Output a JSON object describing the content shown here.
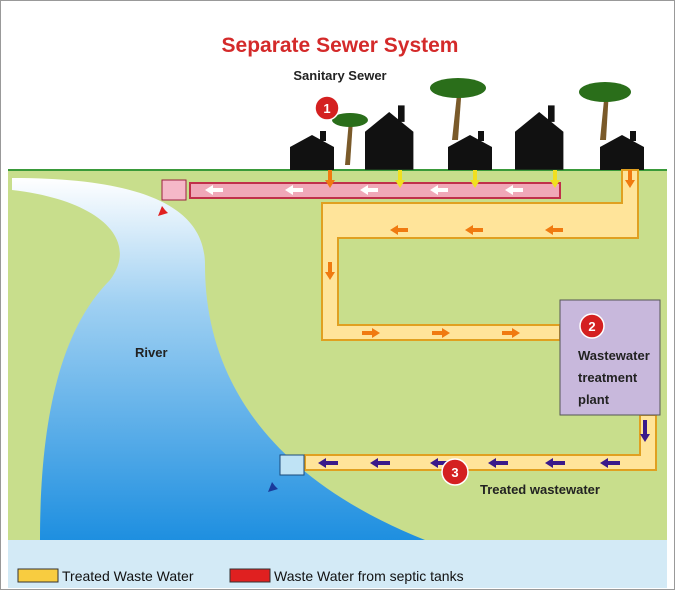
{
  "title": "Separate Sewer System",
  "subtitle": "Sanitary Sewer",
  "markers": [
    "1",
    "2",
    "3"
  ],
  "labels": {
    "river": "River",
    "plant": [
      "Wastewater",
      "treatment",
      "plant"
    ],
    "treated": "Treated wastewater"
  },
  "legend": [
    "Treated Waste Water",
    "Waste Water from septic tanks"
  ]
}
